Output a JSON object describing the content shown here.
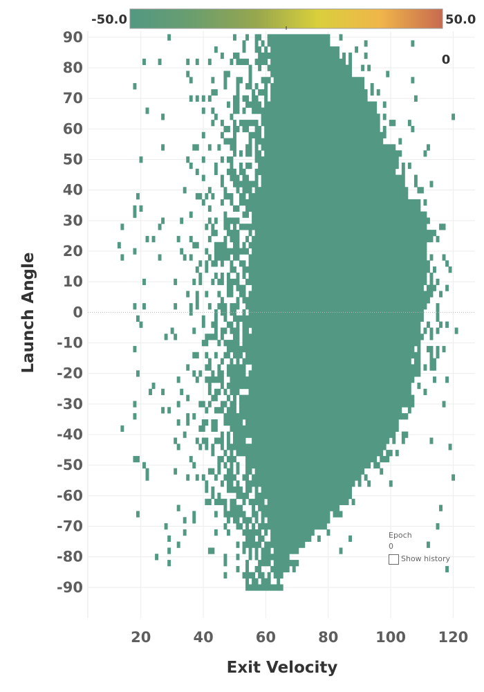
{
  "chart_data": {
    "type": "heatmap",
    "title": "",
    "xlabel": "Exit Velocity",
    "ylabel": "Launch Angle",
    "xlim": [
      3,
      127
    ],
    "ylim": [
      -100,
      92
    ],
    "x_ticks": [
      20,
      40,
      60,
      80,
      100,
      120
    ],
    "y_ticks": [
      90,
      80,
      70,
      60,
      50,
      40,
      30,
      20,
      10,
      0,
      -10,
      -20,
      -30,
      -40,
      -50,
      -60,
      -70,
      -80,
      -90
    ],
    "grid": true,
    "zero_line": true,
    "bin_size": {
      "exit_velocity": 1,
      "launch_angle": 2
    },
    "cell_value": 0,
    "cell_color": "#529883",
    "dense_region_boundary": [
      {
        "launch_angle": 88,
        "left": 61,
        "right": 82
      },
      {
        "launch_angle": 80,
        "left": 63,
        "right": 89
      },
      {
        "launch_angle": 70,
        "left": 62,
        "right": 95
      },
      {
        "launch_angle": 60,
        "left": 60,
        "right": 99
      },
      {
        "launch_angle": 50,
        "left": 59,
        "right": 103
      },
      {
        "launch_angle": 40,
        "left": 58,
        "right": 107
      },
      {
        "launch_angle": 30,
        "left": 57,
        "right": 113
      },
      {
        "launch_angle": 20,
        "left": 56,
        "right": 115
      },
      {
        "launch_angle": 10,
        "left": 56,
        "right": 115
      },
      {
        "launch_angle": 0,
        "left": 56,
        "right": 114
      },
      {
        "launch_angle": -10,
        "left": 56,
        "right": 112
      },
      {
        "launch_angle": -20,
        "left": 56,
        "right": 110
      },
      {
        "launch_angle": -30,
        "left": 56,
        "right": 108
      },
      {
        "launch_angle": -40,
        "left": 56,
        "right": 102
      },
      {
        "launch_angle": -50,
        "left": 57,
        "right": 96
      },
      {
        "launch_angle": -60,
        "left": 60,
        "right": 88
      },
      {
        "launch_angle": -70,
        "left": 62,
        "right": 80
      },
      {
        "launch_angle": -80,
        "left": 63,
        "right": 70
      },
      {
        "launch_angle": -86,
        "left": 64,
        "right": 66
      }
    ],
    "scatter_extent": {
      "exit_velocity": [
        8,
        121
      ],
      "launch_angle": [
        -90,
        90
      ]
    },
    "legend": {
      "type": "continuous-color",
      "placement": "top",
      "min": -50.0,
      "max": 50.0,
      "min_label": "-50.0",
      "max_label": "50.0",
      "stops": [
        "#529883",
        "#6b9e6e",
        "#96a64e",
        "#d9cf3c",
        "#f0b64a",
        "#c76a4f"
      ]
    }
  },
  "epoch": {
    "corner_value": "0",
    "label": "Epoch",
    "value": "0",
    "show_history_label": "Show history",
    "show_history_checked": false
  }
}
